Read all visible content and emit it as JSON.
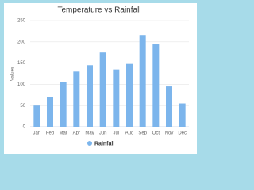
{
  "chart_data": {
    "type": "bar",
    "title": "Temperature vs Rainfall",
    "y_label": "Values",
    "categories": [
      "Jan",
      "Feb",
      "Mar",
      "Apr",
      "May",
      "Jun",
      "Jul",
      "Aug",
      "Sep",
      "Oct",
      "Nov",
      "Dec"
    ],
    "series": [
      {
        "name": "Rainfall",
        "color": "#7cb5ec",
        "values": [
          50,
          70,
          105,
          130,
          145,
          175,
          135,
          148,
          216,
          194,
          95,
          55
        ]
      }
    ],
    "ylim": [
      0,
      250
    ],
    "yticks": [
      0,
      50,
      100,
      150,
      200,
      250
    ],
    "grid": true,
    "legend": "bottom"
  }
}
